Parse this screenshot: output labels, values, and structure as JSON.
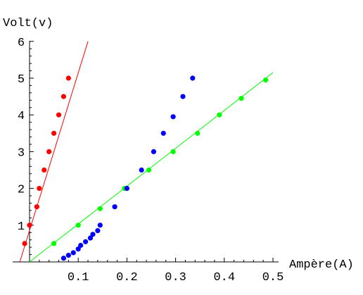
{
  "chart_data": {
    "type": "scatter",
    "title": "",
    "xlabel": "Ampère(A)",
    "ylabel": "Volt(v)",
    "xlim": [
      -0.03,
      0.5
    ],
    "ylim": [
      0,
      6
    ],
    "x_ticks": [
      "0.1",
      "0.2",
      "0.3",
      "0.4",
      "0.5"
    ],
    "y_ticks": [
      "1",
      "2",
      "3",
      "4",
      "5",
      "6"
    ],
    "grid": false,
    "legend": "none",
    "series": [
      {
        "color": "#ff0000",
        "points": [
          [
            -0.01,
            0.5
          ],
          [
            0.0,
            1.0
          ],
          [
            0.015,
            1.5
          ],
          [
            0.02,
            2.0
          ],
          [
            0.03,
            2.5
          ],
          [
            0.04,
            3.0
          ],
          [
            0.05,
            3.5
          ],
          [
            0.06,
            4.0
          ],
          [
            0.07,
            4.5
          ],
          [
            0.08,
            5.0
          ]
        ],
        "fit_line": [
          [
            -0.02,
            0.0
          ],
          [
            0.12,
            6.0
          ]
        ]
      },
      {
        "color": "#00ff00",
        "points": [
          [
            0.05,
            0.5
          ],
          [
            0.1,
            1.0
          ],
          [
            0.145,
            1.45
          ],
          [
            0.195,
            2.0
          ],
          [
            0.245,
            2.5
          ],
          [
            0.295,
            3.0
          ],
          [
            0.345,
            3.5
          ],
          [
            0.39,
            4.0
          ],
          [
            0.435,
            4.45
          ],
          [
            0.485,
            4.95
          ]
        ],
        "fit_line": [
          [
            0.0,
            0.0
          ],
          [
            0.5,
            5.15
          ]
        ]
      },
      {
        "color": "#0000ff",
        "points": [
          [
            0.07,
            0.1
          ],
          [
            0.08,
            0.18
          ],
          [
            0.09,
            0.25
          ],
          [
            0.1,
            0.35
          ],
          [
            0.105,
            0.45
          ],
          [
            0.115,
            0.55
          ],
          [
            0.125,
            0.65
          ],
          [
            0.13,
            0.75
          ],
          [
            0.14,
            0.85
          ],
          [
            0.145,
            1.0
          ],
          [
            0.175,
            1.5
          ],
          [
            0.2,
            2.0
          ],
          [
            0.23,
            2.5
          ],
          [
            0.255,
            3.0
          ],
          [
            0.275,
            3.5
          ],
          [
            0.295,
            3.95
          ],
          [
            0.315,
            4.5
          ],
          [
            0.335,
            5.0
          ]
        ]
      }
    ]
  }
}
